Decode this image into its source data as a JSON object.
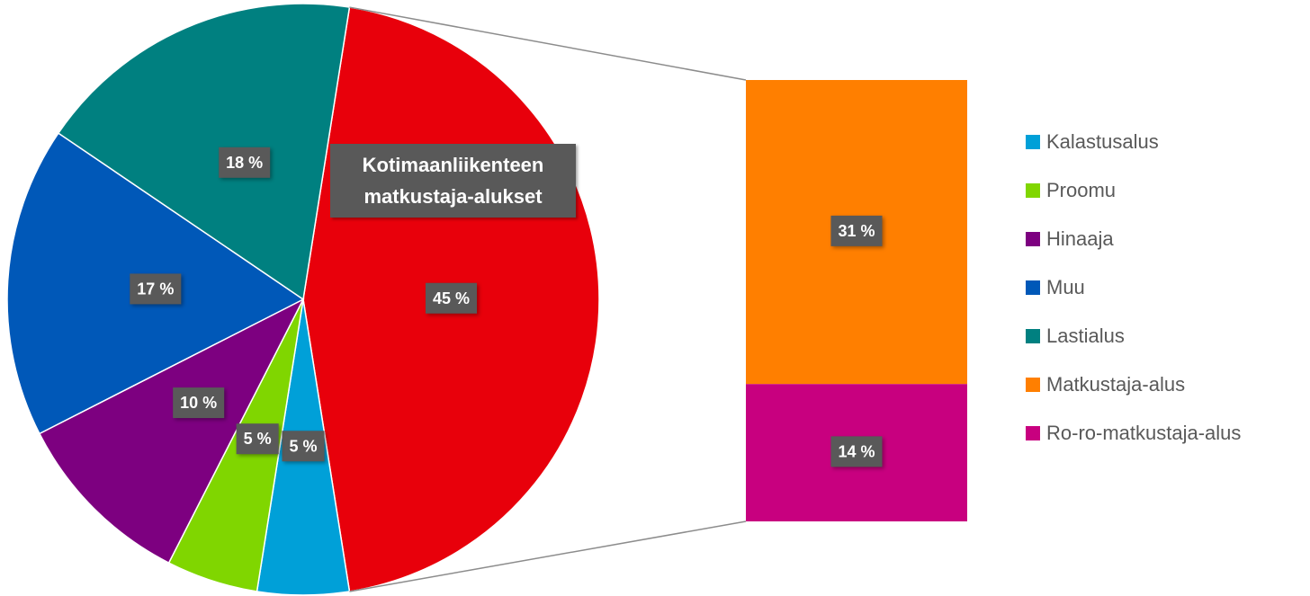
{
  "chart_data": {
    "type": "bar-of-pie",
    "pie": {
      "categories": [
        "Kalastusalus",
        "Proomu",
        "Hinaaja",
        "Muu",
        "Lastialus",
        "Kotimaanliikenteen matkustaja-alukset"
      ],
      "values": [
        5,
        5,
        10,
        17,
        18,
        45
      ],
      "value_labels": [
        "5 %",
        "5 %",
        "10 %",
        "17 %",
        "18 %",
        "45 %"
      ],
      "colors": [
        "#00a0d8",
        "#80d600",
        "#7d0080",
        "#0058b8",
        "#008080",
        "#e8000b"
      ]
    },
    "bar": {
      "categories": [
        "Matkustaja-alus",
        "Ro-ro-matkustaja-alus"
      ],
      "values": [
        31,
        14
      ],
      "value_labels": [
        "31 %",
        "14 %"
      ],
      "colors": [
        "#ff7f00",
        "#c8007f"
      ]
    }
  }
}
